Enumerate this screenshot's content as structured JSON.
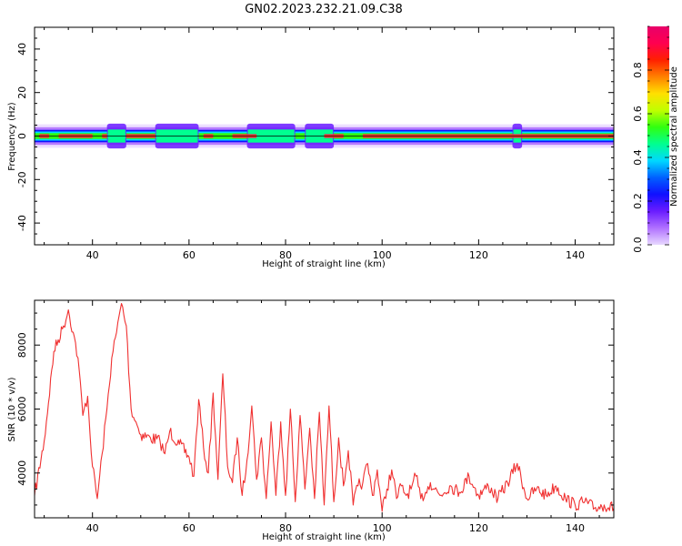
{
  "title": "GN02.2023.232.21.09.C38",
  "colors": {
    "snr_line": "#f03030",
    "frame": "#000000",
    "colormap": [
      "#e8d8ff",
      "#b070ff",
      "#6a1cff",
      "#1010ff",
      "#0060ff",
      "#00d8ff",
      "#00ff90",
      "#30ff10",
      "#c0ff00",
      "#ffe000",
      "#ff8000",
      "#ff2000",
      "#ff0050",
      "#e8006a"
    ]
  },
  "chart_data": [
    {
      "type": "heatmap",
      "id": "spectrogram",
      "xlabel": "Height of straight line (km)",
      "ylabel": "Frequency (Hz)",
      "xlim": [
        28,
        148
      ],
      "ylim": [
        -50,
        50
      ],
      "xticks": [
        40,
        60,
        80,
        100,
        120,
        140
      ],
      "yticks": [
        -40,
        -20,
        0,
        20,
        40
      ],
      "band_center_hz": 0,
      "band_halfwidth_hz": 3,
      "colorbar": {
        "label": "Normalized spectral amplitude",
        "range": [
          0.0,
          1.0
        ],
        "ticks": [
          0.0,
          0.2,
          0.4,
          0.6,
          0.8
        ]
      },
      "peak_segments_km": [
        [
          29,
          31
        ],
        [
          33,
          40
        ],
        [
          42,
          43
        ],
        [
          47,
          53
        ],
        [
          63,
          65
        ],
        [
          69,
          74
        ],
        [
          88,
          92
        ],
        [
          96,
          148
        ]
      ],
      "wide_spots_km": [
        [
          43,
          47
        ],
        [
          53,
          62
        ],
        [
          72,
          82
        ],
        [
          84,
          90
        ],
        [
          127,
          129
        ]
      ]
    },
    {
      "type": "line",
      "id": "snr",
      "xlabel": "Height of straight line (km)",
      "ylabel": "SNR (10 * v/v)",
      "xlim": [
        28,
        148
      ],
      "ylim": [
        2600,
        9400
      ],
      "xticks": [
        40,
        60,
        80,
        100,
        120,
        140
      ],
      "yticks": [
        4000,
        6000,
        8000
      ],
      "series": [
        {
          "x": [
            28,
            30,
            32,
            34,
            35,
            36,
            37,
            38,
            39,
            40,
            41,
            42,
            43,
            44,
            45,
            46,
            47,
            48,
            49,
            50,
            52,
            54,
            55,
            56,
            58,
            60,
            61,
            62,
            63,
            64,
            65,
            66,
            67,
            68,
            69,
            70,
            71,
            72,
            73,
            74,
            75,
            76,
            77,
            78,
            79,
            80,
            81,
            82,
            83,
            84,
            85,
            86,
            87,
            88,
            89,
            90,
            91,
            92,
            93,
            94,
            95,
            96,
            97,
            98,
            99,
            100,
            101,
            102,
            103,
            104,
            105,
            106,
            107,
            108,
            109,
            110,
            112,
            114,
            116,
            118,
            120,
            122,
            124,
            126,
            128,
            130,
            132,
            134,
            136,
            138,
            140,
            142,
            144,
            146,
            148
          ],
          "y": [
            3300,
            5000,
            7800,
            8600,
            9100,
            8400,
            7600,
            5800,
            6400,
            4200,
            3200,
            4600,
            6000,
            7600,
            8400,
            9300,
            8600,
            6000,
            5600,
            5200,
            5100,
            5000,
            4600,
            5300,
            4900,
            4500,
            3900,
            6300,
            4800,
            4000,
            6500,
            3800,
            7100,
            4200,
            3700,
            5100,
            3300,
            4400,
            6100,
            3800,
            5100,
            3200,
            5600,
            3300,
            5600,
            3300,
            6000,
            3100,
            5800,
            3500,
            5400,
            3200,
            5900,
            3000,
            6100,
            3100,
            5100,
            3600,
            4700,
            3000,
            3600,
            3700,
            4300,
            3300,
            4100,
            2800,
            3500,
            4100,
            3200,
            3600,
            3300,
            3500,
            3900,
            3200,
            3400,
            3700,
            3300,
            3600,
            3400,
            3900,
            3300,
            3600,
            3200,
            3700,
            4300,
            3200,
            3500,
            3300,
            3600,
            3200,
            3000,
            3100,
            2900,
            3000,
            2900
          ]
        }
      ]
    }
  ]
}
